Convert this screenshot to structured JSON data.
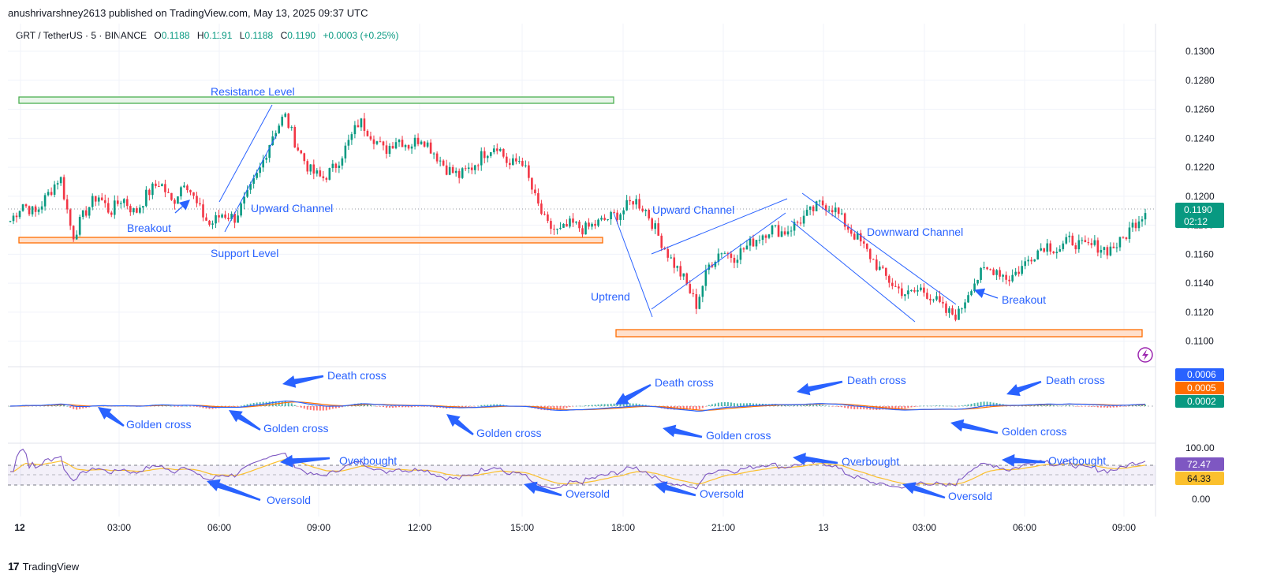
{
  "header": {
    "published": "anushrivarshney2613 published on TradingView.com, May 13, 2025 09:37 UTC",
    "symbol": "GRT / TetherUS · 5 · BINANCE",
    "open_label": "O",
    "open": "0.1188",
    "high_label": "H",
    "high": "0.1191",
    "low_label": "L",
    "low": "0.1188",
    "close_label": "C",
    "close": "0.1190",
    "change": "+0.0003 (+0.25%)"
  },
  "brand": {
    "name": "TradingView",
    "logo": "17"
  },
  "colors": {
    "up": "#089981",
    "down": "#f23645",
    "annotation": "#2962ff",
    "resistance": "#4caf50",
    "support": "#ff6d00",
    "macd": "#2962ff",
    "signal": "#ff6d00",
    "rsi": "#7e57c2",
    "rsi_ma": "#fbc02d"
  },
  "chart_data": [
    {
      "type": "candlestick",
      "price_axis": {
        "ticks": [
          "0.1300",
          "0.1280",
          "0.1260",
          "0.1240",
          "0.1220",
          "0.1200",
          "0.1180",
          "0.1160",
          "0.1140",
          "0.1120",
          "0.1100"
        ],
        "range": [
          0.1096,
          0.1306
        ]
      },
      "time_axis": {
        "labels": [
          "12",
          "03:00",
          "06:00",
          "09:00",
          "12:00",
          "15:00",
          "18:00",
          "21:00",
          "13",
          "03:00",
          "06:00",
          "09:00"
        ]
      },
      "last_price": "0.1190",
      "countdown": "02:12",
      "path": [
        [
          0,
          0.1183
        ],
        [
          6,
          0.1195
        ],
        [
          12,
          0.1188
        ],
        [
          18,
          0.1201
        ],
        [
          24,
          0.1214
        ],
        [
          30,
          0.1172
        ],
        [
          36,
          0.1189
        ],
        [
          42,
          0.1201
        ],
        [
          48,
          0.1189
        ],
        [
          54,
          0.1199
        ],
        [
          60,
          0.1188
        ],
        [
          66,
          0.1202
        ],
        [
          72,
          0.121
        ],
        [
          78,
          0.1195
        ],
        [
          84,
          0.1212
        ],
        [
          90,
          0.1193
        ],
        [
          96,
          0.118
        ],
        [
          102,
          0.1188
        ],
        [
          108,
          0.1185
        ],
        [
          114,
          0.12
        ],
        [
          120,
          0.1218
        ],
        [
          126,
          0.1242
        ],
        [
          132,
          0.1256
        ],
        [
          138,
          0.1234
        ],
        [
          144,
          0.1218
        ],
        [
          150,
          0.1212
        ],
        [
          156,
          0.122
        ],
        [
          162,
          0.1235
        ],
        [
          168,
          0.1252
        ],
        [
          174,
          0.1242
        ],
        [
          180,
          0.1231
        ],
        [
          186,
          0.124
        ],
        [
          192,
          0.1235
        ],
        [
          198,
          0.1241
        ],
        [
          204,
          0.123
        ],
        [
          210,
          0.1219
        ],
        [
          216,
          0.1214
        ],
        [
          222,
          0.122
        ],
        [
          228,
          0.123
        ],
        [
          234,
          0.1236
        ],
        [
          240,
          0.1221
        ],
        [
          246,
          0.1226
        ],
        [
          252,
          0.12
        ],
        [
          258,
          0.118
        ],
        [
          264,
          0.1175
        ],
        [
          270,
          0.1181
        ],
        [
          276,
          0.1177
        ],
        [
          282,
          0.1181
        ],
        [
          288,
          0.1185
        ],
        [
          294,
          0.1189
        ],
        [
          300,
          0.1198
        ],
        [
          306,
          0.119
        ],
        [
          312,
          0.1172
        ],
        [
          318,
          0.1156
        ],
        [
          324,
          0.1143
        ],
        [
          330,
          0.1125
        ],
        [
          336,
          0.1152
        ],
        [
          342,
          0.1163
        ],
        [
          348,
          0.1158
        ],
        [
          354,
          0.1165
        ],
        [
          360,
          0.1172
        ],
        [
          366,
          0.1178
        ],
        [
          372,
          0.1175
        ],
        [
          378,
          0.1181
        ],
        [
          384,
          0.1188
        ],
        [
          390,
          0.1195
        ],
        [
          396,
          0.1192
        ],
        [
          402,
          0.118
        ],
        [
          408,
          0.117
        ],
        [
          414,
          0.1158
        ],
        [
          420,
          0.1146
        ],
        [
          426,
          0.1137
        ],
        [
          432,
          0.1132
        ],
        [
          438,
          0.1136
        ],
        [
          444,
          0.113
        ],
        [
          450,
          0.112
        ],
        [
          456,
          0.1118
        ],
        [
          462,
          0.1138
        ],
        [
          468,
          0.1148
        ],
        [
          474,
          0.115
        ],
        [
          480,
          0.1143
        ],
        [
          486,
          0.115
        ],
        [
          492,
          0.116
        ],
        [
          498,
          0.1167
        ],
        [
          504,
          0.1163
        ],
        [
          510,
          0.117
        ],
        [
          516,
          0.1165
        ],
        [
          522,
          0.1166
        ],
        [
          528,
          0.1163
        ],
        [
          534,
          0.1168
        ],
        [
          540,
          0.118
        ],
        [
          546,
          0.119
        ]
      ]
    },
    {
      "type": "line",
      "name": "MACD",
      "values_right": [
        "0.0006",
        "0.0005",
        "0.0002"
      ]
    },
    {
      "type": "line",
      "name": "RSI",
      "ticks": [
        "100.00",
        "0.00"
      ],
      "values_right": [
        "72.47",
        "64.33"
      ]
    }
  ],
  "annotations": {
    "resistance": "Resistance Level",
    "support": "Support Level",
    "breakout1": "Breakout",
    "upward1": "Upward Channel",
    "uptrend": "Uptrend",
    "upward2": "Upward Channel",
    "downward": "Downward Channel",
    "breakout2": "Breakout",
    "death1": "Death cross",
    "death2": "Death cross",
    "death3": "Death cross",
    "death4": "Death cross",
    "golden1": "Golden cross",
    "golden2": "Golden cross",
    "golden3": "Golden cross",
    "golden4": "Golden cross",
    "golden5": "Golden cross",
    "ob1": "Overbought",
    "ob2": "Overbought",
    "ob3": "Overbought",
    "os1": "Oversold",
    "os2": "Oversold",
    "os3": "Oversold",
    "os4": "Oversold"
  },
  "icons": {
    "alert": "lightning-icon"
  }
}
